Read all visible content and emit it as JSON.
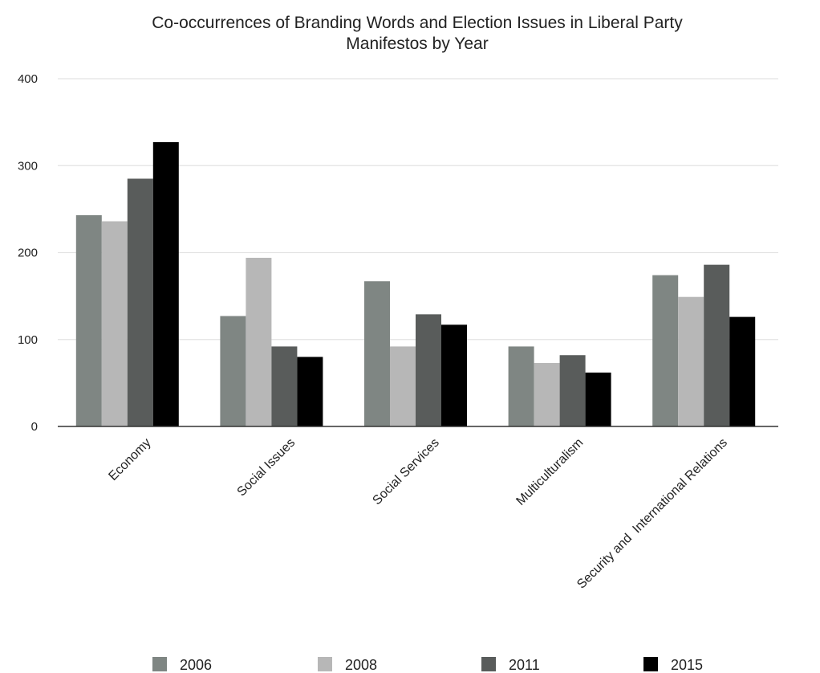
{
  "chart_data": {
    "type": "bar",
    "title_lines": [
      "Co-occurrences of Branding Words and Election Issues in Liberal Party",
      "Manifestos by Year"
    ],
    "xlabel": "",
    "ylabel": "",
    "ylim": [
      0,
      400
    ],
    "yticks": [
      "0",
      "100",
      "200",
      "300",
      "400"
    ],
    "grid": true,
    "legend_position": "bottom",
    "categories": [
      "Economy",
      "Social Issues",
      "Social Services",
      "Multiculturalism",
      "Security and  International Relations"
    ],
    "series": [
      {
        "name": "2006",
        "color": "#7f8683",
        "values": [
          243,
          127,
          167,
          92,
          174
        ]
      },
      {
        "name": "2008",
        "color": "#b7b7b7",
        "values": [
          236,
          194,
          92,
          73,
          149
        ]
      },
      {
        "name": "2011",
        "color": "#595c5b",
        "values": [
          285,
          92,
          129,
          82,
          186
        ]
      },
      {
        "name": "2015",
        "color": "#000000",
        "values": [
          327,
          80,
          117,
          62,
          126
        ]
      }
    ]
  }
}
